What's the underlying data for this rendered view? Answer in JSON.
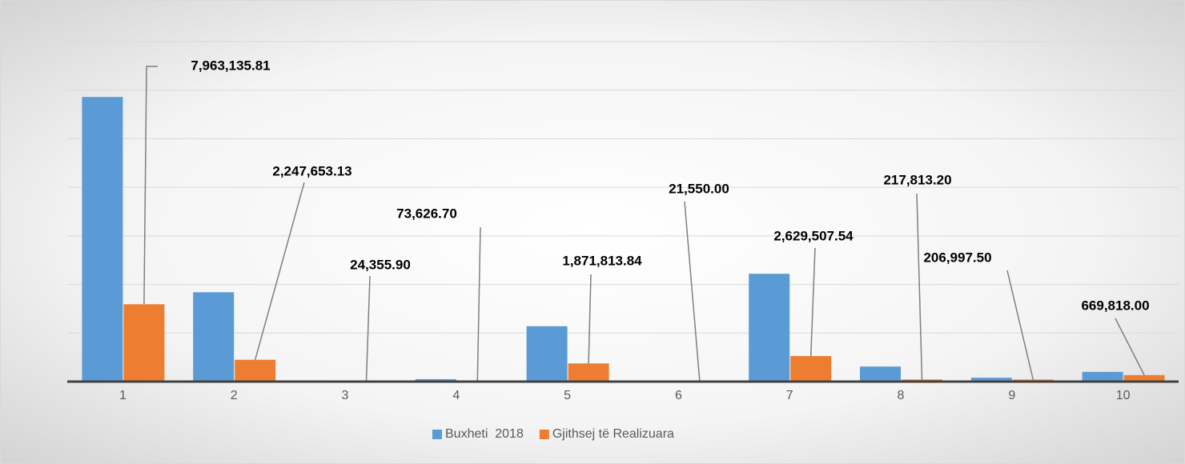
{
  "chart_data": {
    "type": "bar",
    "categories": [
      "1",
      "2",
      "3",
      "4",
      "5",
      "6",
      "7",
      "8",
      "9",
      "10"
    ],
    "series": [
      {
        "name": "Buxheti  2018",
        "color": "#5b9bd5",
        "values": [
          29300000,
          9200000,
          20000,
          250000,
          5700000,
          15000,
          11100000,
          1550000,
          400000,
          1000000
        ]
      },
      {
        "name": "Gjithsej të Realizuara",
        "color": "#ed7d31",
        "values": [
          7963135.81,
          2247653.13,
          24355.9,
          73626.7,
          1871813.84,
          21550,
          2629507.54,
          217813.2,
          206997.5,
          669818
        ],
        "value_labels": [
          "7,963,135.81",
          "2,247,653.13",
          "24,355.90",
          "73,626.70",
          "1,871,813.84",
          "21,550.00",
          "2,629,507.54",
          "217,813.20",
          "206,997.50",
          "669,818.00"
        ]
      }
    ],
    "ylim": [
      0,
      35000000
    ],
    "yticks": [
      0,
      5000000,
      10000000,
      15000000,
      20000000,
      25000000,
      30000000,
      35000000
    ],
    "grid": true,
    "legend": "bottom"
  }
}
